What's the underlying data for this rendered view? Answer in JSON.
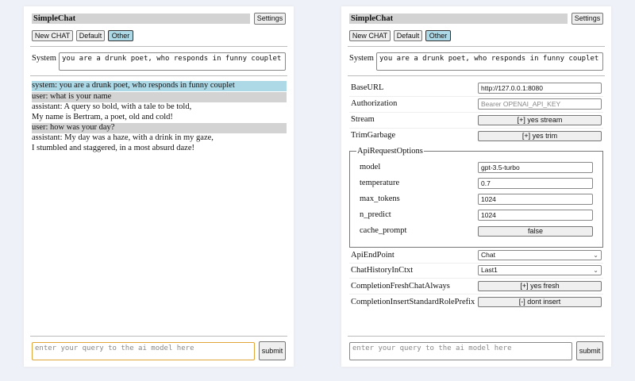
{
  "app_title": "SimpleChat",
  "settings_label": "Settings",
  "chat_buttons": [
    "New CHAT",
    "Default",
    "Other"
  ],
  "selected_chat": "Other",
  "system_label": "System",
  "system_prompt": "you are a drunk poet, who responds in funny couplet",
  "messages": [
    {
      "role": "system",
      "lines": [
        "system: you are a drunk poet, who responds in funny couplet"
      ]
    },
    {
      "role": "user",
      "lines": [
        "user: what is your name"
      ]
    },
    {
      "role": "assistant",
      "lines": [
        "assistant: A query so bold, with a tale to be told,",
        "My name is Bertram, a poet, old and cold!"
      ]
    },
    {
      "role": "user",
      "lines": [
        "user: how was your day?"
      ]
    },
    {
      "role": "assistant",
      "lines": [
        "assistant: My day was a haze, with a drink in my gaze,",
        "I stumbled and staggered, in a most absurd daze!"
      ]
    }
  ],
  "query_placeholder": "enter your query to the ai model here",
  "submit_label": "submit",
  "settings": {
    "base_url": {
      "label": "BaseURL",
      "value": "http://127.0.0.1:8080"
    },
    "authorization": {
      "label": "Authorization",
      "placeholder": "Bearer OPENAI_API_KEY"
    },
    "stream": {
      "label": "Stream",
      "value": "[+] yes stream"
    },
    "trim_garbage": {
      "label": "TrimGarbage",
      "value": "[+] yes trim"
    },
    "api_request_options": {
      "legend": "ApiRequestOptions",
      "model": {
        "label": "model",
        "value": "gpt-3.5-turbo"
      },
      "temperature": {
        "label": "temperature",
        "value": "0.7"
      },
      "max_tokens": {
        "label": "max_tokens",
        "value": "1024"
      },
      "n_predict": {
        "label": "n_predict",
        "value": "1024"
      },
      "cache_prompt": {
        "label": "cache_prompt",
        "value": "false"
      }
    },
    "api_end_point": {
      "label": "ApiEndPoint",
      "value": "Chat"
    },
    "chat_history": {
      "label": "ChatHistoryInCtxt",
      "value": "Last1"
    },
    "completion_fresh": {
      "label": "CompletionFreshChatAlways",
      "value": "[+] yes fresh"
    },
    "completion_insert": {
      "label": "CompletionInsertStandardRolePrefix",
      "value": "[-] dont insert"
    }
  }
}
